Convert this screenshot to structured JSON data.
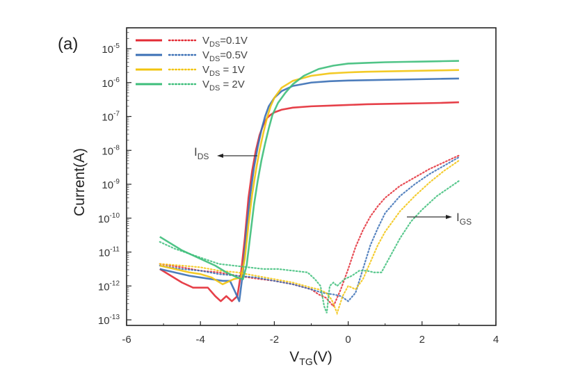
{
  "chart_data": {
    "type": "line",
    "panel_label": "(a)",
    "title": "",
    "xlabel": "V",
    "xlabel_sub": "TG",
    "xlabel_suffix": "(V)",
    "ylabel": "Current(A)",
    "xlim": [
      -6,
      4
    ],
    "ylim_log10": [
      -13.2,
      -4.4
    ],
    "yscale": "log",
    "xticks": [
      -6,
      -4,
      -2,
      0,
      2,
      4
    ],
    "xtick_labels": [
      "-6",
      "-4",
      "-2",
      "0",
      "2",
      "4"
    ],
    "yticks_log10": [
      -5,
      -6,
      -7,
      -8,
      -9,
      -10,
      -11,
      -12,
      -13
    ],
    "ytick_labels": [
      {
        "base": "10",
        "exp": "-5"
      },
      {
        "base": "10",
        "exp": "-6"
      },
      {
        "base": "10",
        "exp": "-7"
      },
      {
        "base": "10",
        "exp": "-8"
      },
      {
        "base": "10",
        "exp": "-9"
      },
      {
        "base": "10",
        "exp": "-10"
      },
      {
        "base": "10",
        "exp": "-11"
      },
      {
        "base": "10",
        "exp": "-12"
      },
      {
        "base": "10",
        "exp": "-13"
      }
    ],
    "grid": false,
    "legend_position": "top-left",
    "annotations": [
      {
        "text": "I",
        "sub": "DS",
        "arrow": "left",
        "x": -2.6,
        "log10y": -8.1
      },
      {
        "text": "I",
        "sub": "GS",
        "arrow": "right",
        "x": 1.3,
        "log10y": -10.2
      }
    ],
    "series": [
      {
        "name": "V_DS=0.1V",
        "label_main": "V",
        "label_sub": "DS",
        "label_rest": "=0.1V",
        "color": "#e32b35",
        "ids": {
          "x": [
            -5.1,
            -4.8,
            -4.5,
            -4.2,
            -4.0,
            -3.8,
            -3.6,
            -3.45,
            -3.3,
            -3.15,
            -3.0,
            -2.9,
            -2.8,
            -2.7,
            -2.6,
            -2.5,
            -2.4,
            -2.3,
            -2.2,
            -2.1,
            -2.0,
            -1.8,
            -1.5,
            -1.0,
            -0.5,
            0.0,
            0.5,
            1.0,
            1.5,
            2.0,
            2.5,
            3.0
          ],
          "log10y": [
            -11.5,
            -11.7,
            -11.9,
            -12.05,
            -12.05,
            -12.05,
            -12.3,
            -12.45,
            -12.3,
            -12.45,
            -12.3,
            -11.6,
            -10.6,
            -9.4,
            -8.6,
            -8.0,
            -7.55,
            -7.25,
            -7.05,
            -6.95,
            -6.88,
            -6.8,
            -6.74,
            -6.7,
            -6.68,
            -6.66,
            -6.64,
            -6.63,
            -6.62,
            -6.61,
            -6.6,
            -6.58
          ]
        },
        "igs": {
          "x": [
            -5.1,
            -4.5,
            -4.0,
            -3.5,
            -3.0,
            -2.5,
            -2.0,
            -1.5,
            -1.0,
            -0.8,
            -0.6,
            -0.4,
            -0.2,
            0.0,
            0.2,
            0.4,
            0.6,
            0.8,
            1.0,
            1.4,
            1.8,
            2.2,
            2.6,
            3.0
          ],
          "log10y": [
            -11.35,
            -11.45,
            -11.55,
            -11.6,
            -11.7,
            -11.78,
            -11.85,
            -11.95,
            -12.1,
            -12.25,
            -12.35,
            -12.6,
            -12.1,
            -11.5,
            -10.85,
            -10.35,
            -9.95,
            -9.65,
            -9.4,
            -9.05,
            -8.8,
            -8.55,
            -8.35,
            -8.15
          ]
        }
      },
      {
        "name": "V_DS=0.5V",
        "label_main": "V",
        "label_sub": "DS",
        "label_rest": "=0.5V",
        "color": "#3a6fb5",
        "ids": {
          "x": [
            -5.1,
            -4.7,
            -4.3,
            -4.0,
            -3.7,
            -3.4,
            -3.2,
            -3.05,
            -2.95,
            -2.85,
            -2.75,
            -2.65,
            -2.55,
            -2.45,
            -2.35,
            -2.25,
            -2.15,
            -2.0,
            -1.8,
            -1.5,
            -1.0,
            -0.5,
            0.0,
            0.5,
            1.0,
            1.5,
            2.0,
            2.5,
            3.0
          ],
          "log10y": [
            -11.5,
            -11.6,
            -11.7,
            -11.75,
            -11.8,
            -11.85,
            -11.85,
            -12.2,
            -12.45,
            -11.6,
            -10.3,
            -9.3,
            -8.5,
            -7.9,
            -7.4,
            -7.0,
            -6.7,
            -6.45,
            -6.25,
            -6.1,
            -6.0,
            -5.96,
            -5.94,
            -5.93,
            -5.92,
            -5.91,
            -5.9,
            -5.89,
            -5.88
          ]
        },
        "igs": {
          "x": [
            -5.1,
            -4.5,
            -4.0,
            -3.5,
            -3.0,
            -2.5,
            -2.0,
            -1.5,
            -1.0,
            -0.7,
            -0.4,
            -0.2,
            0.0,
            0.2,
            0.4,
            0.6,
            0.8,
            1.0,
            1.4,
            1.8,
            2.2,
            2.6,
            3.0
          ],
          "log10y": [
            -11.4,
            -11.5,
            -11.55,
            -11.65,
            -11.7,
            -11.75,
            -11.85,
            -11.95,
            -12.1,
            -12.2,
            -12.25,
            -12.3,
            -12.45,
            -12.2,
            -11.5,
            -10.8,
            -10.3,
            -9.85,
            -9.35,
            -9.0,
            -8.7,
            -8.45,
            -8.2
          ]
        }
      },
      {
        "name": "V_DS = 1V",
        "label_main": "V",
        "label_sub": "DS",
        "label_rest": " = 1V",
        "color": "#f2c40f",
        "ids": {
          "x": [
            -5.1,
            -4.7,
            -4.3,
            -4.0,
            -3.7,
            -3.4,
            -3.1,
            -2.9,
            -2.8,
            -2.7,
            -2.6,
            -2.5,
            -2.4,
            -2.3,
            -2.2,
            -2.1,
            -2.0,
            -1.8,
            -1.5,
            -1.0,
            -0.5,
            0.0,
            0.5,
            1.0,
            1.5,
            2.0,
            2.5,
            3.0
          ],
          "log10y": [
            -11.4,
            -11.5,
            -11.6,
            -11.65,
            -11.75,
            -11.95,
            -11.8,
            -11.75,
            -11.2,
            -10.2,
            -9.3,
            -8.6,
            -8.0,
            -7.5,
            -7.05,
            -6.7,
            -6.45,
            -6.15,
            -5.95,
            -5.8,
            -5.73,
            -5.7,
            -5.68,
            -5.67,
            -5.66,
            -5.65,
            -5.64,
            -5.63
          ]
        },
        "igs": {
          "x": [
            -5.1,
            -4.5,
            -4.0,
            -3.5,
            -3.0,
            -2.5,
            -2.0,
            -1.5,
            -1.0,
            -0.8,
            -0.6,
            -0.45,
            -0.3,
            -0.15,
            0.0,
            0.2,
            0.4,
            0.6,
            0.8,
            1.0,
            1.4,
            1.8,
            2.2,
            2.6,
            3.0
          ],
          "log10y": [
            -11.35,
            -11.4,
            -11.45,
            -11.55,
            -11.6,
            -11.7,
            -11.8,
            -11.9,
            -12.05,
            -12.1,
            -12.2,
            -12.4,
            -12.8,
            -12.3,
            -12.0,
            -12.1,
            -11.8,
            -11.3,
            -10.8,
            -10.4,
            -9.8,
            -9.35,
            -8.95,
            -8.6,
            -8.3
          ]
        }
      },
      {
        "name": "V_DS = 2V",
        "label_main": "V",
        "label_sub": "DS",
        "label_rest": " = 2V",
        "color": "#3dbe7a",
        "ids": {
          "x": [
            -5.1,
            -4.8,
            -4.5,
            -4.2,
            -3.9,
            -3.6,
            -3.3,
            -3.0,
            -2.85,
            -2.75,
            -2.65,
            -2.55,
            -2.45,
            -2.35,
            -2.25,
            -2.15,
            -2.05,
            -1.9,
            -1.7,
            -1.5,
            -1.2,
            -0.8,
            -0.4,
            0.0,
            0.5,
            1.0,
            1.5,
            2.0,
            2.5,
            3.0
          ],
          "log10y": [
            -10.55,
            -10.75,
            -10.95,
            -11.1,
            -11.25,
            -11.4,
            -11.6,
            -11.75,
            -11.8,
            -11.4,
            -10.5,
            -9.6,
            -8.9,
            -8.3,
            -7.8,
            -7.35,
            -6.95,
            -6.6,
            -6.3,
            -6.05,
            -5.8,
            -5.6,
            -5.5,
            -5.44,
            -5.42,
            -5.4,
            -5.39,
            -5.38,
            -5.37,
            -5.36
          ]
        },
        "igs": {
          "x": [
            -5.1,
            -4.7,
            -4.3,
            -3.9,
            -3.5,
            -3.1,
            -2.7,
            -2.3,
            -1.9,
            -1.5,
            -1.1,
            -0.9,
            -0.75,
            -0.65,
            -0.58,
            -0.5,
            -0.4,
            -0.3,
            -0.1,
            0.1,
            0.3,
            0.5,
            0.7,
            0.9,
            1.0,
            1.2,
            1.4,
            1.7,
            2.0,
            2.4,
            2.8,
            3.0
          ],
          "log10y": [
            -10.7,
            -10.9,
            -11.05,
            -11.2,
            -11.35,
            -11.4,
            -11.45,
            -11.5,
            -11.5,
            -11.55,
            -11.6,
            -11.8,
            -12.0,
            -12.6,
            -12.8,
            -12.0,
            -11.9,
            -12.0,
            -11.8,
            -11.7,
            -11.55,
            -11.55,
            -11.6,
            -11.6,
            -11.4,
            -11.0,
            -10.6,
            -10.1,
            -9.75,
            -9.35,
            -9.05,
            -8.9
          ]
        }
      }
    ]
  }
}
